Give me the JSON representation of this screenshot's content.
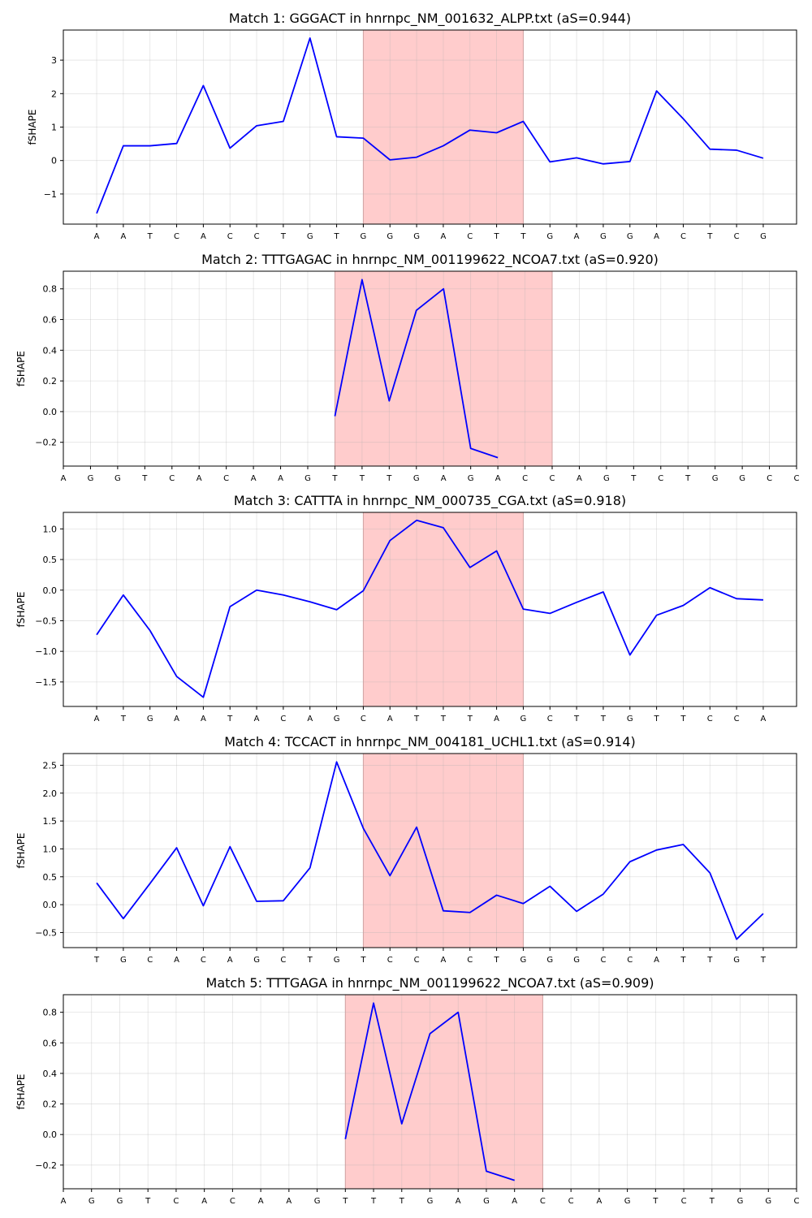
{
  "chart_data": [
    {
      "type": "line",
      "title": "Match 1: GGGACT in hnrnpc_NM_001632_ALPP.txt (aS=0.944)",
      "xlabel": "",
      "ylabel": "fSHAPE",
      "categories": [
        "A",
        "A",
        "T",
        "C",
        "A",
        "C",
        "C",
        "T",
        "G",
        "T",
        "G",
        "G",
        "G",
        "A",
        "C",
        "T",
        "T",
        "G",
        "A",
        "G",
        "G",
        "A",
        "C",
        "T",
        "C",
        "G"
      ],
      "values": [
        -1.58,
        0.44,
        0.44,
        0.51,
        2.24,
        0.37,
        1.04,
        1.17,
        3.66,
        0.71,
        0.67,
        0.02,
        0.1,
        0.44,
        0.91,
        0.83,
        1.17,
        -0.04,
        0.08,
        -0.1,
        -0.03,
        2.08,
        1.25,
        0.34,
        0.31,
        0.07
      ],
      "ylim": [
        -1.9,
        3.9
      ],
      "yticks": [
        -1,
        0,
        1,
        2,
        3
      ],
      "ytick_labels": [
        "−1",
        "0",
        "1",
        "2",
        "3"
      ],
      "xlim": [
        -1.25,
        26.25
      ],
      "highlight": [
        10,
        16
      ],
      "highlight_color": "#ffcccc",
      "line_color": "#0000ff",
      "grid": true
    },
    {
      "type": "line",
      "title": "Match 2: TTTGAGAC in hnrnpc_NM_001199622_NCOA7.txt (aS=0.920)",
      "xlabel": "",
      "ylabel": "fSHAPE",
      "categories": [
        "A",
        "G",
        "G",
        "T",
        "C",
        "A",
        "C",
        "A",
        "A",
        "G",
        "T",
        "T",
        "T",
        "G",
        "A",
        "G",
        "A",
        "C",
        "C",
        "A",
        "G",
        "T",
        "C",
        "T",
        "G",
        "G",
        "C",
        "C"
      ],
      "values": [
        null,
        null,
        null,
        null,
        null,
        null,
        null,
        null,
        null,
        null,
        -0.03,
        0.86,
        0.07,
        0.66,
        0.8,
        -0.24,
        -0.3,
        null,
        null,
        null,
        null,
        null,
        null,
        null,
        null,
        null,
        null,
        null
      ],
      "ylim": [
        -0.355,
        0.915
      ],
      "yticks": [
        -0.2,
        0.0,
        0.2,
        0.4,
        0.6,
        0.8
      ],
      "ytick_labels": [
        "−0.2",
        "0.0",
        "0.2",
        "0.4",
        "0.6",
        "0.8"
      ],
      "xlim": [
        0,
        27
      ],
      "highlight": [
        10,
        18
      ],
      "highlight_color": "#ffcccc",
      "line_color": "#0000ff",
      "grid": true
    },
    {
      "type": "line",
      "title": "Match 3: CATTTA in hnrnpc_NM_000735_CGA.txt (aS=0.918)",
      "xlabel": "",
      "ylabel": "fSHAPE",
      "categories": [
        "A",
        "T",
        "G",
        "A",
        "A",
        "T",
        "A",
        "C",
        "A",
        "G",
        "C",
        "A",
        "T",
        "T",
        "T",
        "A",
        "G",
        "C",
        "T",
        "T",
        "G",
        "T",
        "T",
        "C",
        "C",
        "A"
      ],
      "values": [
        -0.73,
        -0.08,
        -0.66,
        -1.41,
        -1.75,
        -0.27,
        0.0,
        -0.08,
        -0.19,
        -0.32,
        -0.01,
        0.81,
        1.14,
        1.02,
        0.37,
        0.64,
        -0.31,
        -0.38,
        -0.2,
        -0.03,
        -1.06,
        -0.41,
        -0.25,
        0.04,
        -0.14,
        -0.16
      ],
      "ylim": [
        -1.9,
        1.27
      ],
      "yticks": [
        -1.5,
        -1.0,
        -0.5,
        0.0,
        0.5,
        1.0
      ],
      "ytick_labels": [
        "−1.5",
        "−1.0",
        "−0.5",
        "0.0",
        "0.5",
        "1.0"
      ],
      "xlim": [
        -1.25,
        26.25
      ],
      "highlight": [
        10,
        16
      ],
      "highlight_color": "#ffcccc",
      "line_color": "#0000ff",
      "grid": true
    },
    {
      "type": "line",
      "title": "Match 4: TCCACT in hnrnpc_NM_004181_UCHL1.txt (aS=0.914)",
      "xlabel": "",
      "ylabel": "fSHAPE",
      "categories": [
        "T",
        "G",
        "C",
        "A",
        "C",
        "A",
        "G",
        "C",
        "T",
        "G",
        "T",
        "C",
        "C",
        "A",
        "C",
        "T",
        "G",
        "G",
        "G",
        "C",
        "C",
        "A",
        "T",
        "T",
        "G",
        "T"
      ],
      "values": [
        0.39,
        -0.25,
        0.38,
        1.02,
        -0.02,
        1.04,
        0.06,
        0.07,
        0.66,
        2.56,
        1.37,
        0.52,
        1.39,
        -0.11,
        -0.14,
        0.17,
        0.02,
        0.33,
        -0.12,
        0.19,
        0.77,
        0.98,
        1.08,
        0.57,
        -0.62,
        -0.16
      ],
      "ylim": [
        -0.77,
        2.71
      ],
      "yticks": [
        -0.5,
        0.0,
        0.5,
        1.0,
        1.5,
        2.0,
        2.5
      ],
      "ytick_labels": [
        "−0.5",
        "0.0",
        "0.5",
        "1.0",
        "1.5",
        "2.0",
        "2.5"
      ],
      "xlim": [
        -1.25,
        26.25
      ],
      "highlight": [
        10,
        16
      ],
      "highlight_color": "#ffcccc",
      "line_color": "#0000ff",
      "grid": true
    },
    {
      "type": "line",
      "title": "Match 5: TTTGAGA in hnrnpc_NM_001199622_NCOA7.txt (aS=0.909)",
      "xlabel": "",
      "ylabel": "fSHAPE",
      "categories": [
        "A",
        "G",
        "G",
        "T",
        "C",
        "A",
        "C",
        "A",
        "A",
        "G",
        "T",
        "T",
        "T",
        "G",
        "A",
        "G",
        "A",
        "C",
        "C",
        "A",
        "G",
        "T",
        "C",
        "T",
        "G",
        "G",
        "C",
        "C"
      ],
      "values": [
        null,
        null,
        null,
        null,
        null,
        null,
        null,
        null,
        null,
        null,
        -0.03,
        0.86,
        0.07,
        0.66,
        0.8,
        -0.24,
        -0.3,
        null,
        null,
        null,
        null,
        null,
        null,
        null,
        null,
        null,
        null,
        null
      ],
      "ylim": [
        -0.355,
        0.915
      ],
      "yticks": [
        -0.2,
        0.0,
        0.2,
        0.4,
        0.6,
        0.8
      ],
      "ytick_labels": [
        "−0.2",
        "0.0",
        "0.2",
        "0.4",
        "0.6",
        "0.8"
      ],
      "xlim": [
        0,
        26
      ],
      "highlight": [
        10,
        17
      ],
      "highlight_color": "#ffcccc",
      "line_color": "#0000ff",
      "grid": true
    }
  ]
}
